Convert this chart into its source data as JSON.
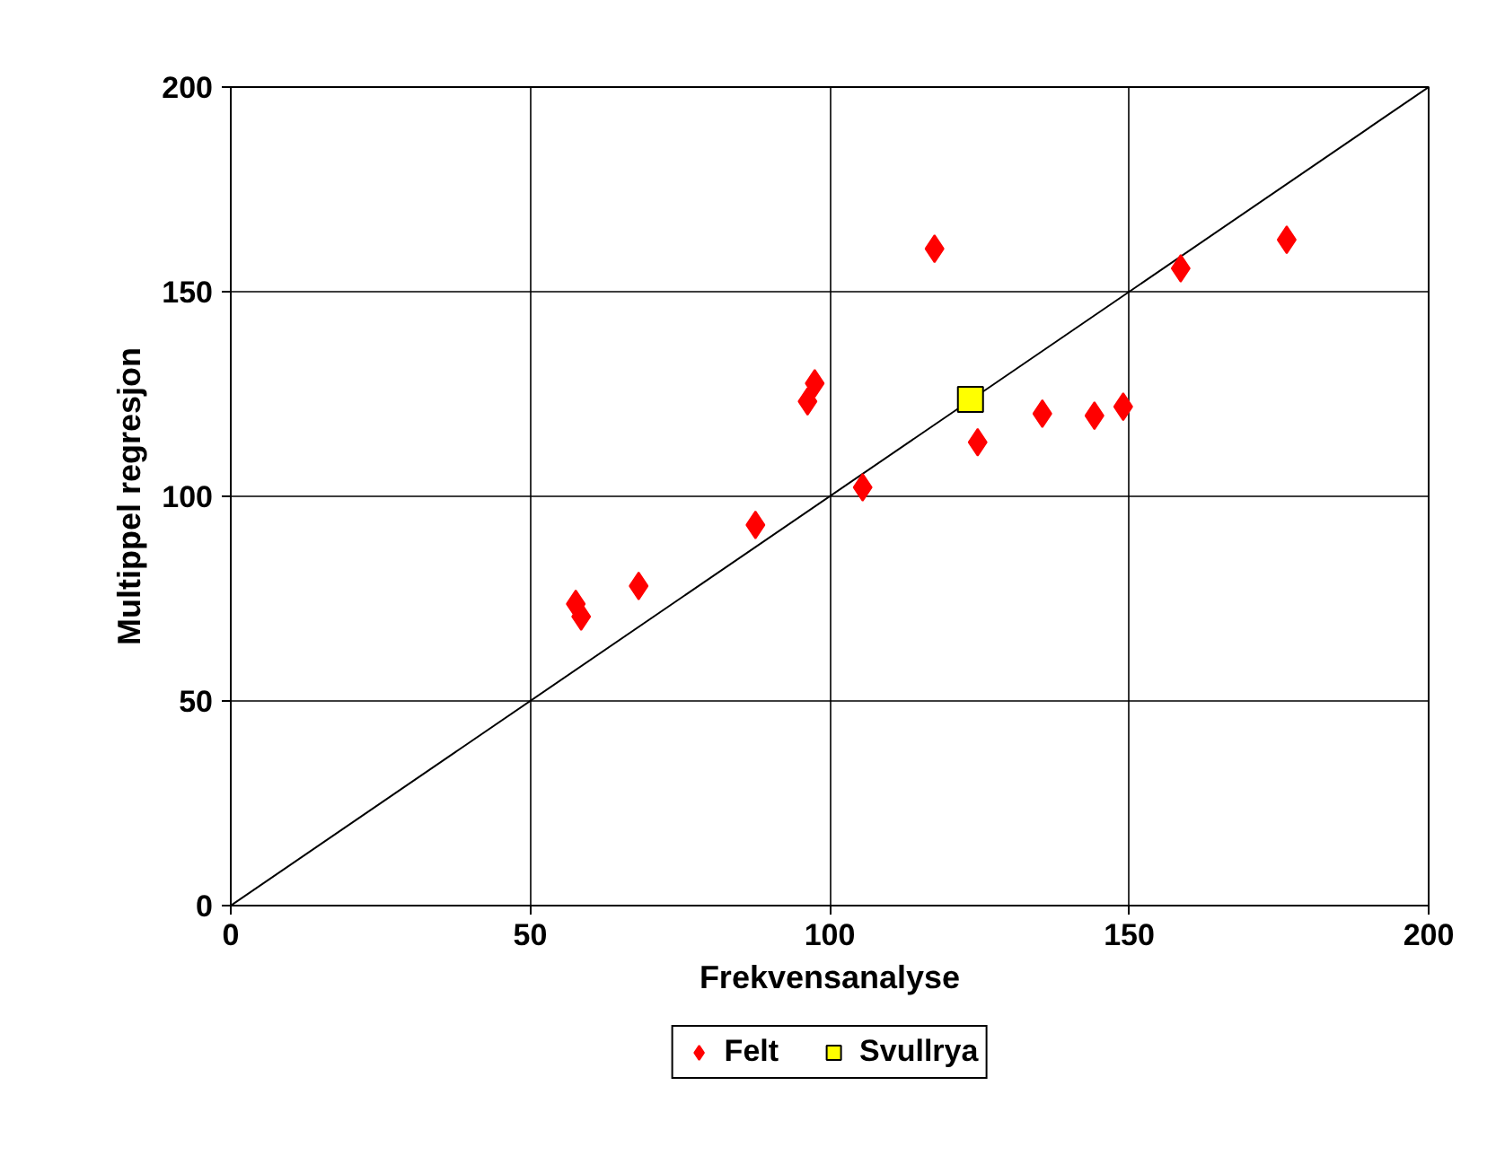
{
  "chart_data": {
    "type": "scatter",
    "xlabel": "Frekvensanalyse",
    "ylabel": "Multippel regresjon",
    "xlim": [
      0,
      200
    ],
    "ylim": [
      0,
      200
    ],
    "xticks": [
      0,
      50,
      100,
      150,
      200
    ],
    "yticks": [
      0,
      50,
      100,
      150,
      200
    ],
    "grid": true,
    "legend": "bottom",
    "series": [
      {
        "type": "line",
        "color": "#000000",
        "marker": "none",
        "x": [
          0,
          200
        ],
        "values": [
          0,
          200
        ]
      },
      {
        "name": "Felt",
        "color": "#ff0000",
        "marker": "diamond",
        "x": [
          57.6,
          58.5,
          68.1,
          87.6,
          96.3,
          97.5,
          105.5,
          117.5,
          124.7,
          135.5,
          144.2,
          149.0,
          158.6,
          176.3
        ],
        "values": [
          73.7,
          70.6,
          78.1,
          93.0,
          123.2,
          127.6,
          102.2,
          160.5,
          113.2,
          120.2,
          119.7,
          121.9,
          155.7,
          162.7
        ]
      },
      {
        "name": "Svullrya",
        "color": "#ffff00",
        "marker": "square",
        "x": [
          123.5
        ],
        "values": [
          123.7
        ]
      }
    ]
  }
}
